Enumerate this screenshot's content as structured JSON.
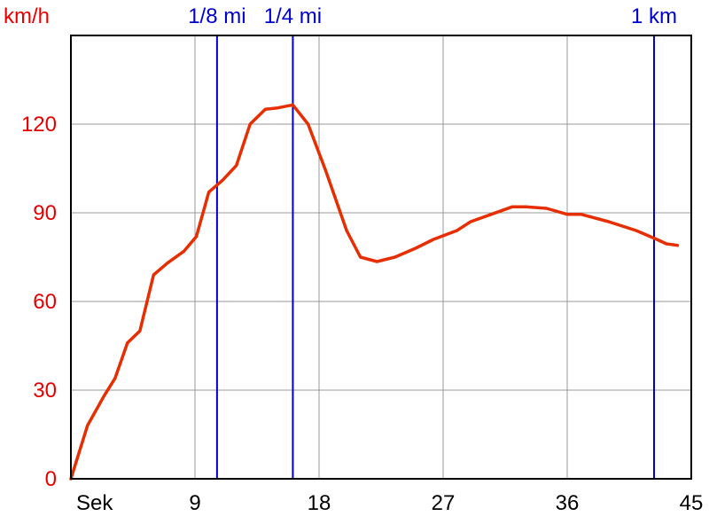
{
  "chart_data": {
    "type": "line",
    "ylabel": "km/h",
    "xlabel": "Sek",
    "xlim": [
      0,
      45
    ],
    "ylim": [
      0,
      150
    ],
    "x_ticks": [
      9,
      18,
      27,
      36,
      45
    ],
    "y_ticks": [
      0,
      30,
      60,
      90,
      120
    ],
    "grid": true,
    "colors": {
      "series": "#e62e00",
      "axis_y_text": "#e60000",
      "marker": "#0000cc",
      "grid": "#999999"
    },
    "markers": [
      {
        "label": "1/8 mi",
        "x": 10.6
      },
      {
        "label": "1/4 mi",
        "x": 16.1
      },
      {
        "label": "1 km",
        "x": 42.3
      }
    ],
    "series": [
      {
        "x": [
          0,
          1.2,
          2.4,
          3.2,
          4.1,
          5.0,
          6.0,
          7.0,
          8.2,
          9.1,
          10.0,
          11.0,
          12.0,
          13.0,
          14.1,
          15.0,
          16.1,
          17.2,
          18.5,
          20.0,
          21.0,
          22.2,
          23.5,
          25.0,
          26.3,
          28.0,
          29.0,
          30.5,
          32.0,
          33.0,
          34.5,
          36.0,
          37.0,
          39.0,
          41.0,
          42.5,
          43.2,
          44.0
        ],
        "y": [
          0,
          18,
          28,
          34,
          46,
          50,
          69,
          73,
          77,
          82,
          97,
          101,
          106,
          120,
          125,
          125.5,
          126.5,
          120,
          104,
          84,
          75,
          73.5,
          75,
          78,
          81,
          84,
          87,
          89.5,
          92,
          92,
          91.5,
          89.5,
          89.5,
          87,
          84,
          81,
          79.5,
          79
        ]
      }
    ]
  }
}
